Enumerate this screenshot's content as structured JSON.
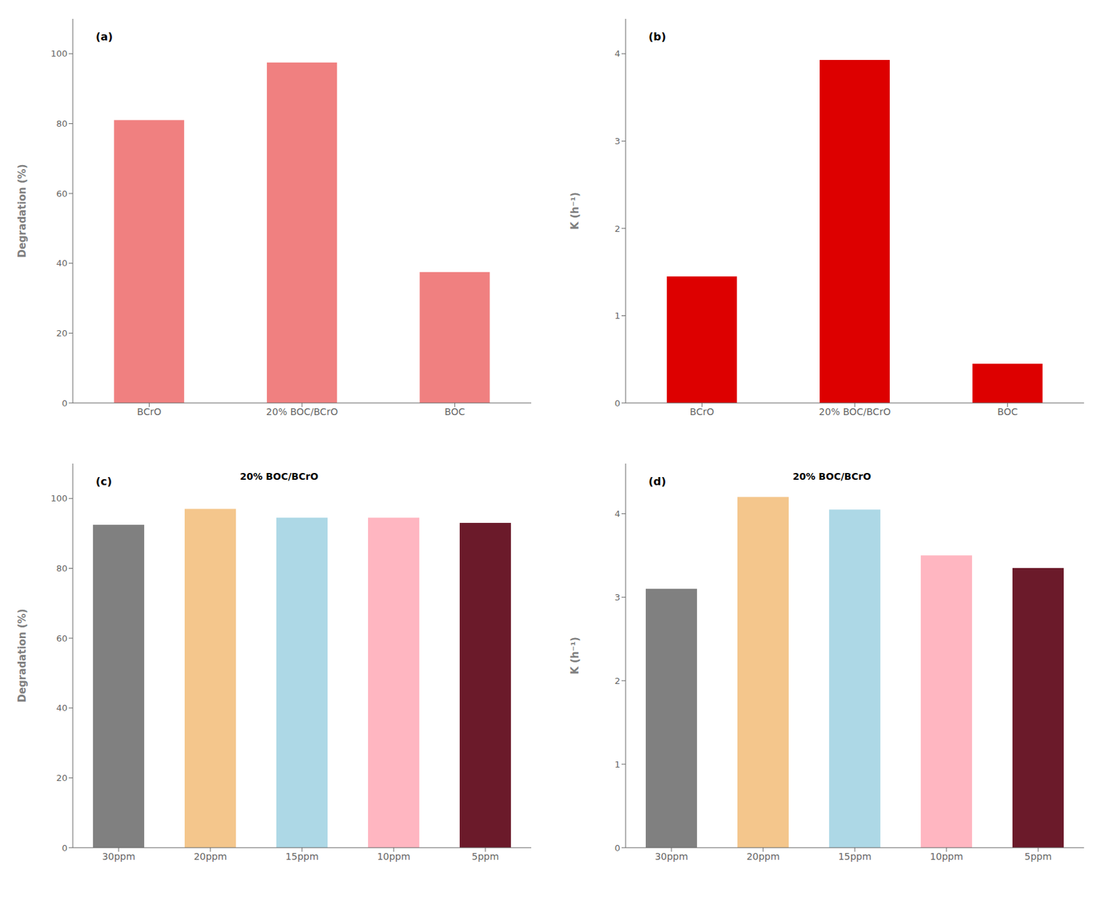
{
  "chart_data": [
    {
      "type": "bar",
      "categories": [
        "BCrO",
        "20% BOC/BCrO",
        "BOC"
      ],
      "values": [
        81,
        97.5,
        37.5
      ],
      "color": "#F08080",
      "ylabel": "Degradation (%)",
      "ylim": [
        0,
        110
      ],
      "yticks": [
        0,
        20,
        40,
        60,
        80,
        100
      ],
      "annotations": [
        "(a)"
      ],
      "grid": false
    },
    {
      "type": "bar",
      "categories": [
        "BCrO",
        "20% BOC/BCrO",
        "BOC"
      ],
      "values": [
        1.45,
        3.93,
        0.45
      ],
      "color": "#DD0000",
      "ylabel": "K (h⁻¹)",
      "ylim": [
        0,
        4.4
      ],
      "yticks": [
        0,
        1,
        2,
        3,
        4
      ],
      "annotations": [
        "(b)"
      ],
      "grid": false
    },
    {
      "type": "bar",
      "categories": [
        "30ppm",
        "20ppm",
        "15ppm",
        "10ppm",
        "5ppm"
      ],
      "values": [
        92.5,
        97.0,
        94.5,
        94.5,
        93.0
      ],
      "colors": [
        "#808080",
        "#F4C68C",
        "#ADD8E6",
        "#FFB6C1",
        "#6B1A2A"
      ],
      "ylabel": "Degradation (%)",
      "ylim": [
        0,
        110
      ],
      "yticks": [
        0,
        20,
        40,
        60,
        80,
        100
      ],
      "annotations": [
        "(c)",
        "20% BOC/BCrO"
      ],
      "grid": false
    },
    {
      "type": "bar",
      "categories": [
        "30ppm",
        "20ppm",
        "15ppm",
        "10ppm",
        "5ppm"
      ],
      "values": [
        3.1,
        4.2,
        4.05,
        3.5,
        3.35
      ],
      "colors": [
        "#808080",
        "#F4C68C",
        "#ADD8E6",
        "#FFB6C1",
        "#6B1A2A"
      ],
      "ylabel": "K (h⁻¹)",
      "ylim": [
        0,
        4.6
      ],
      "yticks": [
        0,
        1,
        2,
        3,
        4
      ],
      "annotations": [
        "(d)",
        "20% BOC/BCrO"
      ],
      "grid": false
    }
  ]
}
